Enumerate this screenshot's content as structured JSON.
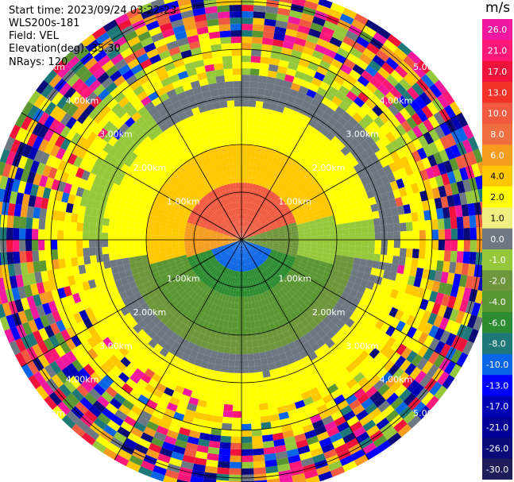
{
  "header": {
    "start_time": "Start time: 2023/09/24 03:22:23",
    "instrument": "WLS200s-181",
    "field": "Field: VEL",
    "elevation": "Elevation(deg): 35.30",
    "nrays": "NRays: 120"
  },
  "range_rings": {
    "labels": [
      "1.00km",
      "2.00km",
      "3.00km",
      "4.00km",
      "5.00km"
    ],
    "values_km": [
      1,
      2,
      3,
      4,
      5
    ]
  },
  "rays": 120,
  "colorbar": {
    "unit": "m/s",
    "ticks": [
      "26.0",
      "21.0",
      "17.0",
      "13.0",
      "10.0",
      "8.0",
      "6.0",
      "4.0",
      "2.0",
      "1.0",
      "0.0",
      "-1.0",
      "-2.0",
      "-4.0",
      "-6.0",
      "-8.0",
      "-10.0",
      "-13.0",
      "-17.0",
      "-21.0",
      "-26.0",
      "-30.0"
    ],
    "colors": [
      "#f0189e",
      "#ff1878",
      "#f0143c",
      "#f03228",
      "#f05a41",
      "#f06e41",
      "#f59b1e",
      "#ffc800",
      "#ffff00",
      "#f0f082",
      "#6e7882",
      "#96c83c",
      "#6e963c",
      "#5a9632",
      "#2d8c32",
      "#1e7878",
      "#0a64e6",
      "#0000ff",
      "#0000b4",
      "#000096",
      "#0a0a78",
      "#1e1e5a"
    ]
  }
}
